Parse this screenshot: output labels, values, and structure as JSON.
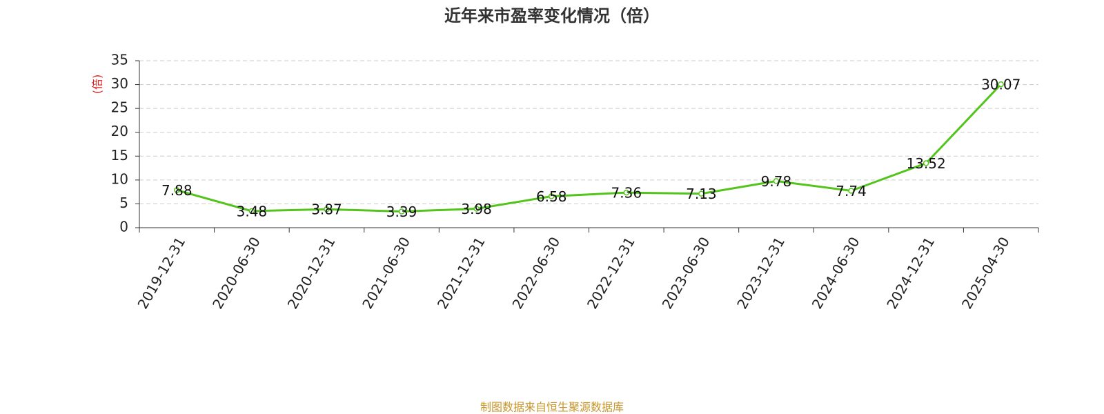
{
  "chart_data": {
    "type": "line",
    "title": "近年来市盈率变化情况（倍）",
    "y_label": "(倍)",
    "source": "制图数据来自恒生聚源数据库",
    "categories": [
      "2019-12-31",
      "2020-06-30",
      "2020-12-31",
      "2021-06-30",
      "2021-12-31",
      "2022-06-30",
      "2022-12-31",
      "2023-06-30",
      "2023-12-31",
      "2024-06-30",
      "2024-12-31",
      "2025-04-30"
    ],
    "values": [
      7.88,
      3.48,
      3.87,
      3.39,
      3.98,
      6.58,
      7.36,
      7.13,
      9.78,
      7.74,
      13.52,
      30.07
    ],
    "color": "#52c41a",
    "ylim": [
      0,
      35
    ],
    "yticks": [
      0,
      5,
      10,
      15,
      20,
      25,
      30,
      35
    ],
    "grid": true
  }
}
